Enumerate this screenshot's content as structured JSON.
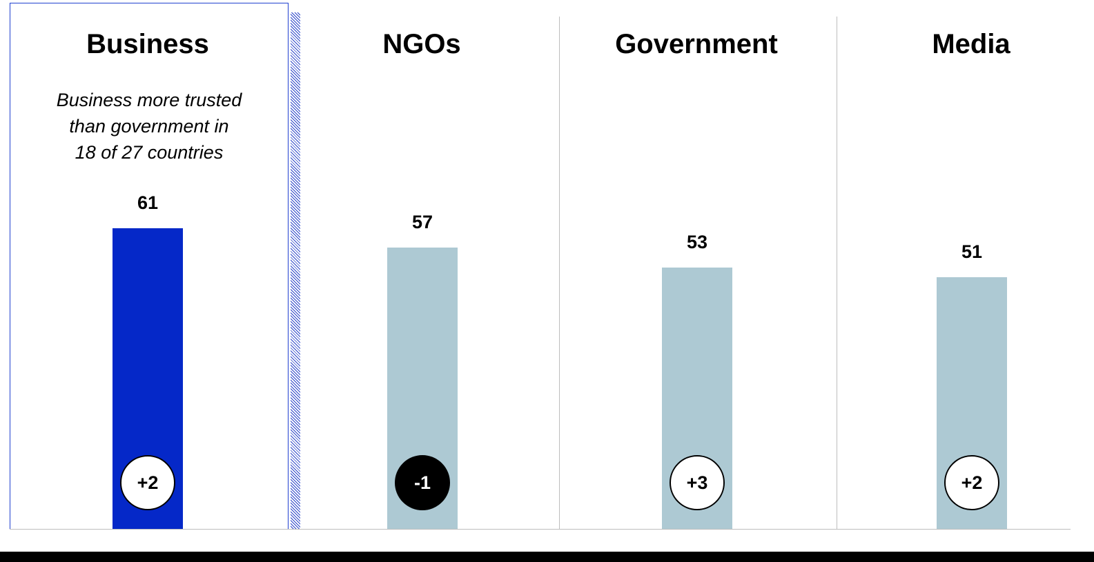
{
  "chart_data": {
    "type": "bar",
    "categories": [
      "Business",
      "NGOs",
      "Government",
      "Media"
    ],
    "values": [
      61,
      57,
      53,
      51
    ],
    "changes": [
      "+2",
      "-1",
      "+3",
      "+2"
    ],
    "annotation": "Business more trusted than government in 18 of 27 countries",
    "annotation_lines": [
      "Business more trusted",
      "than government in",
      "18 of 27 countries"
    ],
    "highlighted_category": "Business",
    "ylim": [
      0,
      100
    ],
    "grid": false,
    "colors": {
      "highlight_bar": "#0528c8",
      "bar": "#adc9d3",
      "positive_change_badge": "#ffffff",
      "negative_change_badge": "#000000"
    }
  }
}
